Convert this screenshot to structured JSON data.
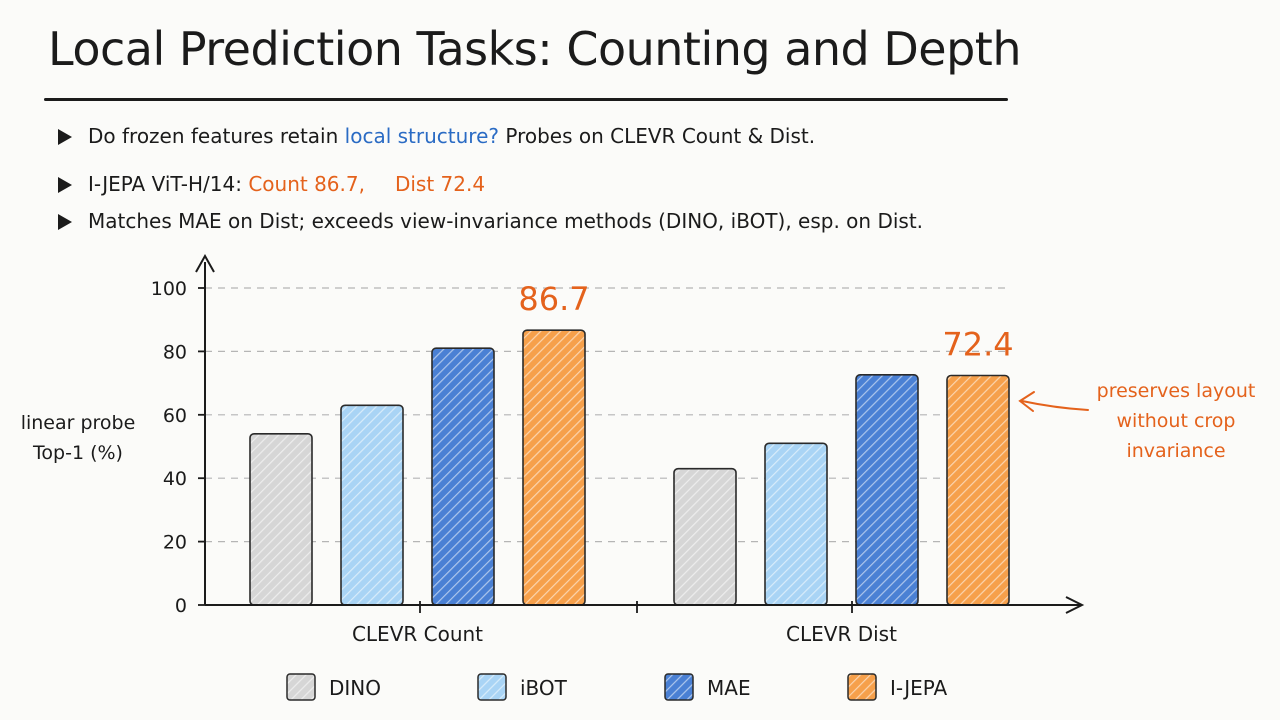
{
  "slide": {
    "title": "Local Prediction Tasks: Counting and Depth",
    "bullets": [
      {
        "pre": "Do frozen features retain ",
        "highlight": "local structure?",
        "post": "  Probes on CLEVR Count & Dist."
      },
      {
        "pre": "I-JEPA ViT-H/14: ",
        "count": "Count 86.7,",
        "dist": "Dist 72.4"
      },
      {
        "text": "Matches MAE on Dist; exceeds view-invariance methods (DINO, iBOT), esp. on Dist."
      }
    ]
  },
  "colors": {
    "DINO": "#d6d6d6",
    "iBOT": "#a9d4f5",
    "MAE": "#4a80d4",
    "I-JEPA": "#f6a04b",
    "accent_orange": "#e4621c",
    "accent_blue": "#2a6bc4"
  },
  "chart_data": {
    "type": "bar",
    "categories": [
      "CLEVR Count",
      "CLEVR Dist"
    ],
    "series": [
      {
        "name": "DINO",
        "values": [
          54,
          43
        ]
      },
      {
        "name": "iBOT",
        "values": [
          63,
          51
        ]
      },
      {
        "name": "MAE",
        "values": [
          81,
          72.6
        ]
      },
      {
        "name": "I-JEPA",
        "values": [
          86.7,
          72.4
        ]
      }
    ],
    "ylabel": "linear probe Top-1 (%)",
    "ylim": [
      0,
      110
    ],
    "yticks": [
      0,
      20,
      40,
      60,
      80,
      100
    ],
    "grid": true,
    "legend_position": "bottom",
    "data_labels": [
      {
        "series": "I-JEPA",
        "category": "CLEVR Count",
        "text": "86.7"
      },
      {
        "series": "I-JEPA",
        "category": "CLEVR Dist",
        "text": "72.4"
      }
    ],
    "annotation": {
      "text": [
        "preserves layout",
        "without crop",
        "invariance"
      ],
      "target": "I-JEPA CLEVR Dist"
    }
  }
}
